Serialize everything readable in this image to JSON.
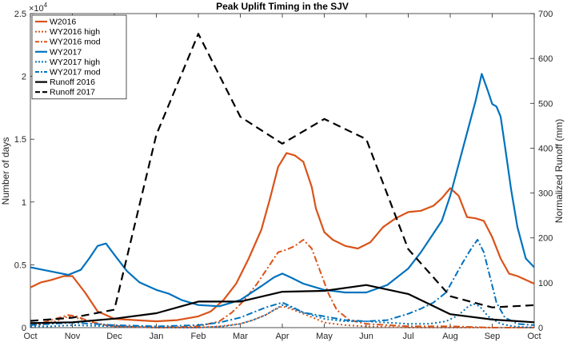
{
  "chart_data": {
    "type": "line",
    "title": "Peak Uplift Timing in the SJV",
    "ylabel_left": "Number of days",
    "ylabel_right": "Normalized Runoff (mm)",
    "left_exponent_label": "×10",
    "left_exponent_power": "4",
    "xlim": [
      0,
      12
    ],
    "ylim_left": [
      0,
      2.5
    ],
    "ylim_right": [
      0,
      700
    ],
    "x_ticks": [
      {
        "v": 0,
        "label": "Oct"
      },
      {
        "v": 1,
        "label": "Nov"
      },
      {
        "v": 2,
        "label": "Dec"
      },
      {
        "v": 3,
        "label": "Jan"
      },
      {
        "v": 4,
        "label": "Feb"
      },
      {
        "v": 5,
        "label": "Mar"
      },
      {
        "v": 6,
        "label": "Apr"
      },
      {
        "v": 7,
        "label": "May"
      },
      {
        "v": 8,
        "label": "Jun"
      },
      {
        "v": 9,
        "label": "Jul"
      },
      {
        "v": 10,
        "label": "Aug"
      },
      {
        "v": 11,
        "label": "Sep"
      },
      {
        "v": 12,
        "label": "Oct"
      }
    ],
    "y_left_ticks": [
      {
        "v": 0,
        "label": "0"
      },
      {
        "v": 0.5,
        "label": "0.5"
      },
      {
        "v": 1,
        "label": "1"
      },
      {
        "v": 1.5,
        "label": "1.5"
      },
      {
        "v": 2,
        "label": "2"
      },
      {
        "v": 2.5,
        "label": "2.5"
      }
    ],
    "y_right_ticks": [
      {
        "v": 0,
        "label": "0"
      },
      {
        "v": 100,
        "label": "100"
      },
      {
        "v": 200,
        "label": "200"
      },
      {
        "v": 300,
        "label": "300"
      },
      {
        "v": 400,
        "label": "400"
      },
      {
        "v": 500,
        "label": "500"
      },
      {
        "v": 600,
        "label": "600"
      },
      {
        "v": 700,
        "label": "700"
      }
    ],
    "legend_position": "top-left",
    "colors": {
      "orange": "#D95319",
      "blue": "#0072BD",
      "black": "#000000"
    },
    "series": [
      {
        "name": "W2016",
        "axis": "left",
        "color": "#D95319",
        "dash": "solid",
        "x": [
          0,
          0.25,
          0.5,
          0.8,
          1.0,
          1.3,
          1.6,
          2.0,
          2.5,
          3.0,
          3.5,
          4.0,
          4.3,
          4.6,
          4.9,
          5.2,
          5.5,
          5.7,
          5.9,
          6.1,
          6.3,
          6.5,
          6.7,
          6.8,
          7.0,
          7.2,
          7.5,
          7.8,
          8.1,
          8.4,
          8.7,
          9.0,
          9.3,
          9.6,
          9.8,
          10.0,
          10.2,
          10.4,
          10.6,
          10.8,
          11.0,
          11.2,
          11.4,
          11.6,
          11.8,
          12.0
        ],
        "y": [
          0.32,
          0.36,
          0.38,
          0.41,
          0.41,
          0.28,
          0.13,
          0.07,
          0.06,
          0.05,
          0.06,
          0.09,
          0.13,
          0.22,
          0.35,
          0.55,
          0.78,
          1.02,
          1.28,
          1.39,
          1.37,
          1.32,
          1.12,
          0.95,
          0.76,
          0.7,
          0.65,
          0.63,
          0.68,
          0.8,
          0.87,
          0.92,
          0.93,
          0.97,
          1.03,
          1.11,
          1.05,
          0.88,
          0.87,
          0.85,
          0.72,
          0.55,
          0.43,
          0.41,
          0.38,
          0.35
        ]
      },
      {
        "name": "WY2016 high",
        "axis": "left",
        "color": "#D95319",
        "dash": "dot",
        "x": [
          0,
          0.3,
          0.6,
          0.9,
          1.2,
          1.6,
          2.0,
          3.0,
          4.0,
          4.5,
          5.0,
          5.3,
          5.6,
          5.8,
          6.0,
          6.2,
          6.5,
          6.8,
          7.0,
          7.5,
          8.0,
          9.0,
          10.0,
          11.0,
          12.0
        ],
        "y": [
          0.02,
          0.03,
          0.05,
          0.09,
          0.07,
          0.03,
          0.01,
          0.0,
          0.0,
          0.01,
          0.03,
          0.06,
          0.1,
          0.14,
          0.17,
          0.15,
          0.11,
          0.07,
          0.04,
          0.02,
          0.01,
          0.0,
          0.0,
          0.0,
          0.0
        ]
      },
      {
        "name": "WY2016 mod",
        "axis": "left",
        "color": "#D95319",
        "dash": "dashdot",
        "x": [
          0,
          0.3,
          0.6,
          0.9,
          1.1,
          1.4,
          1.8,
          2.2,
          3.0,
          4.0,
          4.5,
          4.8,
          5.1,
          5.4,
          5.7,
          5.9,
          6.1,
          6.3,
          6.5,
          6.7,
          6.9,
          7.1,
          7.3,
          7.6,
          8.0,
          9.0,
          10.0,
          11.0,
          12.0
        ],
        "y": [
          0.02,
          0.04,
          0.07,
          0.1,
          0.09,
          0.05,
          0.02,
          0.01,
          0.0,
          0.01,
          0.05,
          0.12,
          0.22,
          0.35,
          0.5,
          0.6,
          0.62,
          0.65,
          0.7,
          0.63,
          0.45,
          0.27,
          0.14,
          0.06,
          0.03,
          0.01,
          0.01,
          0.0,
          0.0
        ]
      },
      {
        "name": "WY2017",
        "axis": "left",
        "color": "#0072BD",
        "dash": "solid",
        "x": [
          0,
          0.3,
          0.6,
          0.9,
          1.2,
          1.4,
          1.6,
          1.8,
          2.0,
          2.3,
          2.6,
          3.0,
          3.3,
          3.6,
          4.0,
          4.5,
          5.0,
          5.5,
          5.8,
          6.0,
          6.2,
          6.5,
          7.0,
          7.5,
          8.0,
          8.5,
          9.0,
          9.3,
          9.6,
          9.8,
          10.0,
          10.2,
          10.4,
          10.6,
          10.75,
          10.9,
          11.0,
          11.1,
          11.2,
          11.3,
          11.45,
          11.6,
          11.8,
          12.0
        ],
        "y": [
          0.48,
          0.46,
          0.44,
          0.42,
          0.46,
          0.55,
          0.65,
          0.67,
          0.58,
          0.45,
          0.36,
          0.3,
          0.27,
          0.22,
          0.18,
          0.17,
          0.22,
          0.33,
          0.4,
          0.43,
          0.4,
          0.35,
          0.3,
          0.28,
          0.28,
          0.34,
          0.47,
          0.6,
          0.75,
          0.85,
          1.05,
          1.3,
          1.55,
          1.8,
          2.02,
          1.88,
          1.78,
          1.76,
          1.68,
          1.45,
          1.1,
          0.8,
          0.55,
          0.48
        ]
      },
      {
        "name": "WY2017 high",
        "axis": "left",
        "color": "#0072BD",
        "dash": "dot",
        "x": [
          0,
          0.5,
          1.0,
          2.0,
          3.0,
          4.0,
          4.6,
          5.0,
          5.3,
          5.6,
          5.8,
          6.0,
          6.2,
          6.5,
          7.0,
          7.5,
          8.0,
          9.0,
          9.5,
          9.9,
          10.2,
          10.4,
          10.55,
          10.7,
          10.9,
          11.2,
          11.5,
          12.0
        ],
        "y": [
          0.01,
          0.01,
          0.02,
          0.01,
          0.0,
          0.0,
          0.01,
          0.03,
          0.06,
          0.1,
          0.14,
          0.18,
          0.16,
          0.12,
          0.07,
          0.05,
          0.05,
          0.03,
          0.03,
          0.05,
          0.1,
          0.16,
          0.19,
          0.17,
          0.09,
          0.03,
          0.01,
          0.0
        ]
      },
      {
        "name": "WY2017 mod",
        "axis": "left",
        "color": "#0072BD",
        "dash": "dashdot",
        "x": [
          0,
          0.5,
          1.0,
          1.5,
          2.0,
          3.0,
          4.0,
          4.5,
          5.0,
          5.3,
          5.6,
          5.8,
          6.0,
          6.2,
          6.5,
          7.0,
          7.5,
          8.0,
          8.5,
          9.0,
          9.3,
          9.6,
          9.9,
          10.1,
          10.3,
          10.5,
          10.65,
          10.8,
          10.95,
          11.1,
          11.3,
          11.6,
          12.0
        ],
        "y": [
          0.02,
          0.03,
          0.04,
          0.03,
          0.02,
          0.01,
          0.02,
          0.04,
          0.08,
          0.12,
          0.16,
          0.18,
          0.2,
          0.17,
          0.12,
          0.09,
          0.06,
          0.05,
          0.06,
          0.11,
          0.15,
          0.2,
          0.28,
          0.4,
          0.52,
          0.63,
          0.7,
          0.6,
          0.4,
          0.2,
          0.08,
          0.03,
          0.02
        ]
      },
      {
        "name": "Runoff 2016",
        "axis": "right",
        "color": "#000000",
        "dash": "solid",
        "x": [
          0,
          1,
          2,
          3,
          4,
          5,
          6,
          7,
          8,
          9,
          10,
          11,
          12
        ],
        "y": [
          10,
          12,
          20,
          32,
          58,
          58,
          80,
          82,
          95,
          75,
          30,
          18,
          12
        ]
      },
      {
        "name": "Runoff 2017",
        "axis": "right",
        "color": "#000000",
        "dash": "dash",
        "x": [
          0,
          1,
          2,
          3,
          4,
          5,
          6,
          7,
          8,
          9,
          10,
          11,
          12
        ],
        "y": [
          15,
          22,
          40,
          430,
          655,
          470,
          410,
          465,
          420,
          175,
          70,
          45,
          50
        ]
      }
    ]
  }
}
